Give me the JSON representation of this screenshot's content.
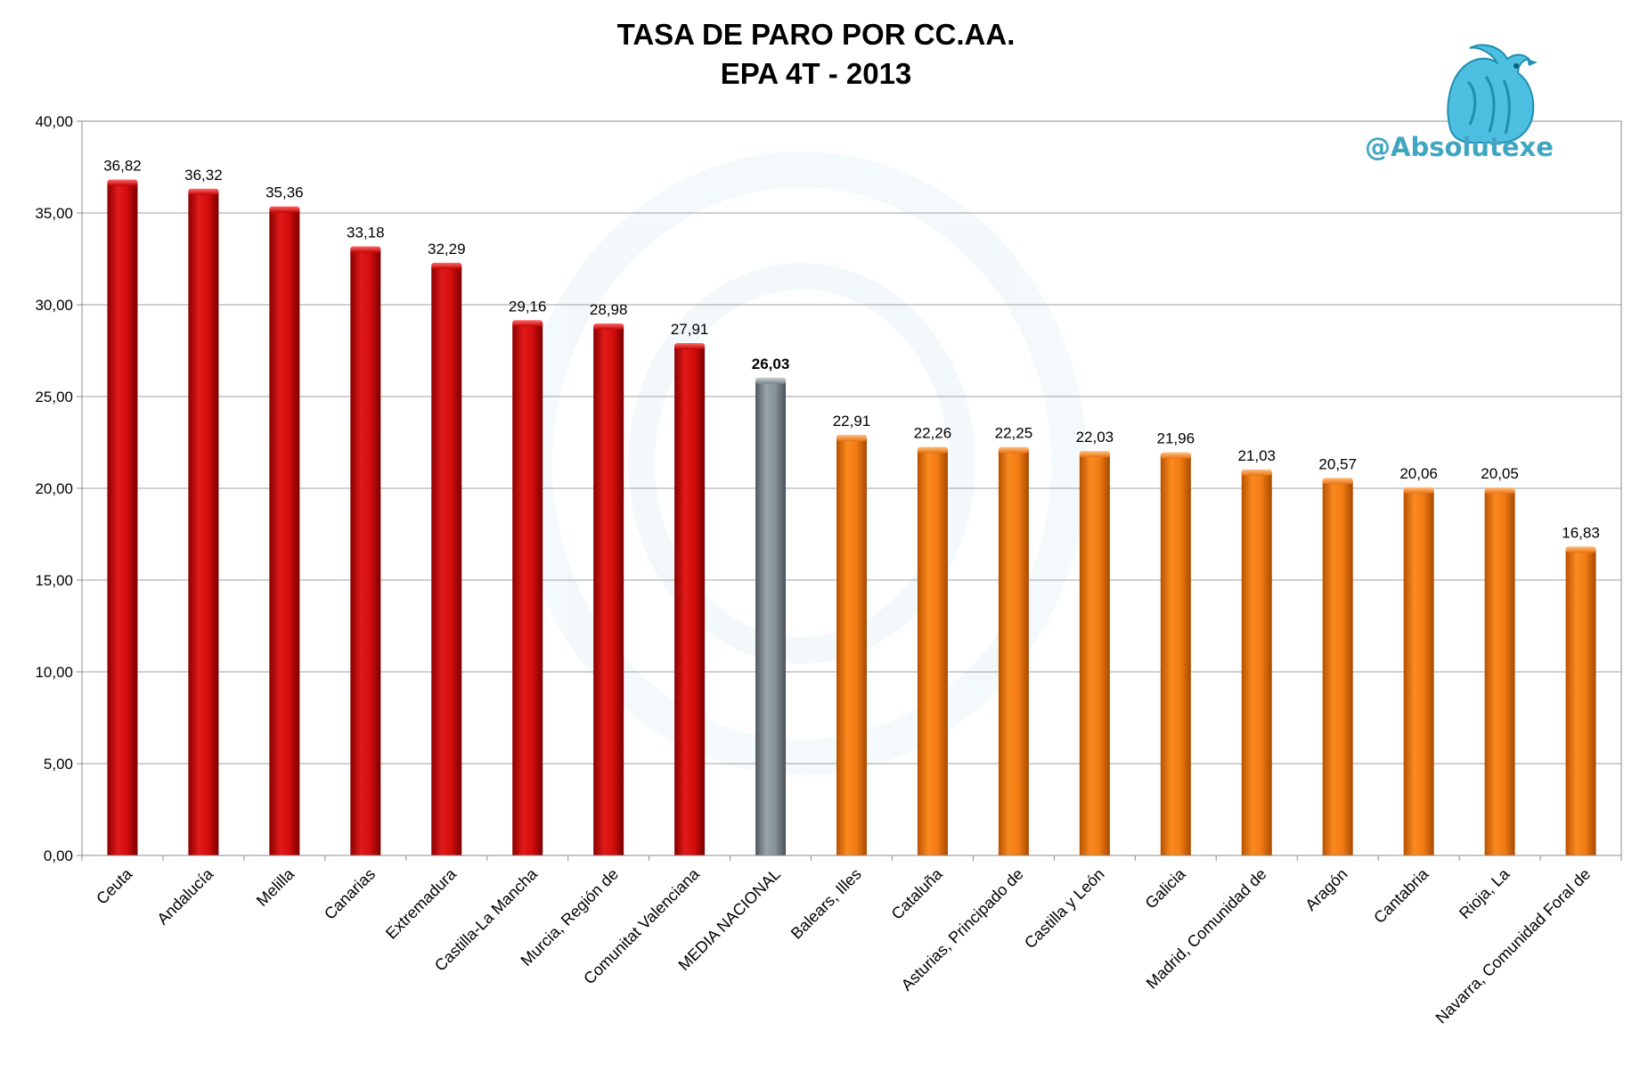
{
  "chart_data": {
    "type": "bar",
    "title": "TASA DE PARO POR CC.AA.",
    "subtitle": "EPA 4T - 2013",
    "categories": [
      "Ceuta",
      "Andalucía",
      "Melilla",
      "Canarias",
      "Extremadura",
      "Castilla-La Mancha",
      "Murcia, Región de",
      "Comunitat Valenciana",
      "MEDIA NACIONAL",
      "Balears, Illes",
      "Cataluña",
      "Asturias, Principado de",
      "Castilla y León",
      "Galicia",
      "Madrid, Comunidad de",
      "Aragón",
      "Cantabria",
      "Rioja, La",
      "Navarra, Comunidad Foral de"
    ],
    "values": [
      36.82,
      36.32,
      35.36,
      33.18,
      32.29,
      29.16,
      28.98,
      27.91,
      26.03,
      22.91,
      22.26,
      22.25,
      22.03,
      21.96,
      21.03,
      20.57,
      20.06,
      20.05,
      16.83
    ],
    "value_labels": [
      "36,82",
      "36,32",
      "35,36",
      "33,18",
      "32,29",
      "29,16",
      "28,98",
      "27,91",
      "26,03",
      "22,91",
      "22,26",
      "22,25",
      "22,03",
      "21,96",
      "21,03",
      "20,57",
      "20,06",
      "20,05",
      "16,83"
    ],
    "bar_groups": [
      "above",
      "above",
      "above",
      "above",
      "above",
      "above",
      "above",
      "above",
      "average",
      "below",
      "below",
      "below",
      "below",
      "below",
      "below",
      "below",
      "below",
      "below",
      "below"
    ],
    "highlight_index": 8,
    "yticks": [
      0,
      5,
      10,
      15,
      20,
      25,
      30,
      35,
      40
    ],
    "ytick_labels": [
      "0,00",
      "5,00",
      "10,00",
      "15,00",
      "20,00",
      "25,00",
      "30,00",
      "35,00",
      "40,00"
    ],
    "ylim": [
      0,
      40
    ],
    "xlabel": "",
    "ylabel": "",
    "grid": "horizontal",
    "legend": "none"
  },
  "colors": {
    "above": "#cc0a0a",
    "average": "#7f8a8f",
    "below": "#f07a12",
    "grid": "#a0a0a0",
    "handle": "#3fa6c2"
  },
  "branding": {
    "handle": "@Absolutexe",
    "logo_icon": "griffin-icon"
  }
}
